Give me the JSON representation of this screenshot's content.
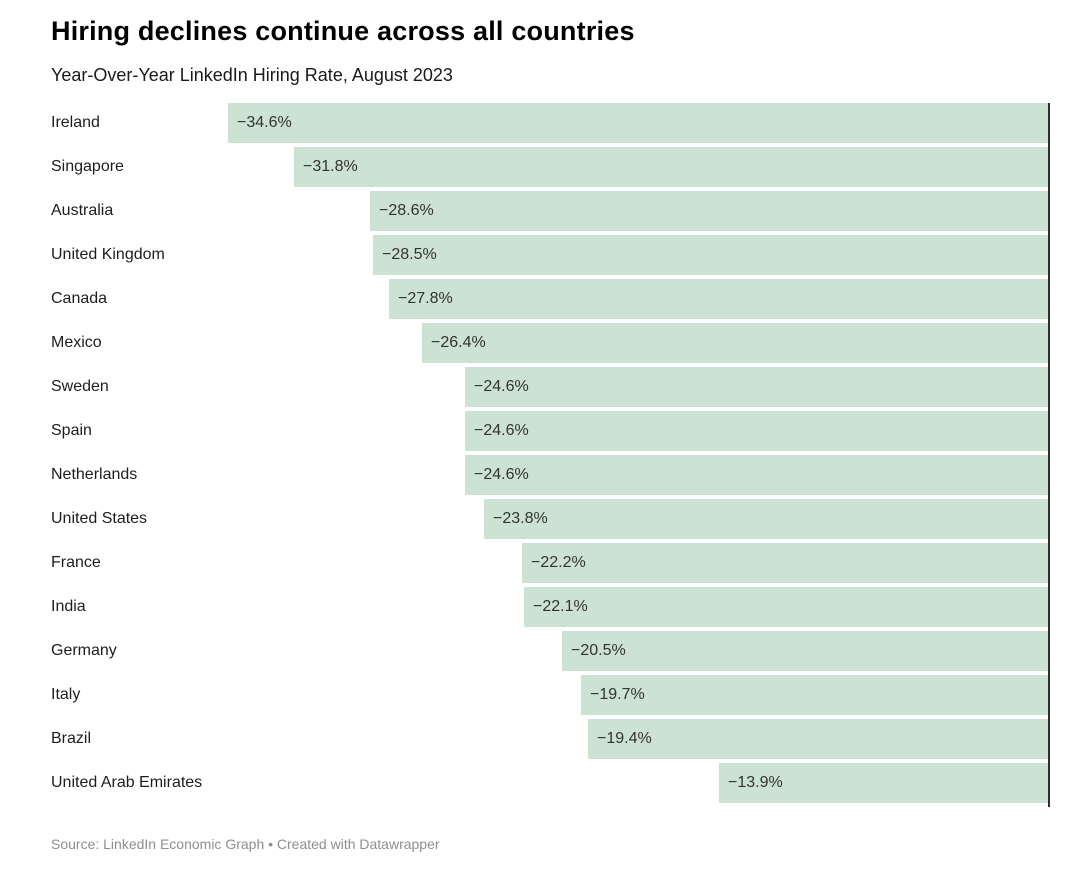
{
  "header": {
    "title": "Hiring declines continue across all countries",
    "subtitle": "Year-Over-Year LinkedIn Hiring Rate, August 2023"
  },
  "footer": {
    "source": "Source: LinkedIn Economic Graph • Created with Datawrapper"
  },
  "chart_data": {
    "type": "bar",
    "orientation": "horizontal",
    "title": "Hiring declines continue across all countries",
    "subtitle": "Year-Over-Year LinkedIn Hiring Rate, August 2023",
    "xlabel": "",
    "ylabel": "",
    "xlim": [
      -34.6,
      0
    ],
    "grid": false,
    "legend": false,
    "bar_color": "#cce2d2",
    "axis_color": "#2e2e2e",
    "categories": [
      "Ireland",
      "Singapore",
      "Australia",
      "United Kingdom",
      "Canada",
      "Mexico",
      "Sweden",
      "Spain",
      "Netherlands",
      "United States",
      "France",
      "India",
      "Germany",
      "Italy",
      "Brazil",
      "United Arab Emirates"
    ],
    "values": [
      -34.6,
      -31.8,
      -28.6,
      -28.5,
      -27.8,
      -26.4,
      -24.6,
      -24.6,
      -24.6,
      -23.8,
      -22.2,
      -22.1,
      -20.5,
      -19.7,
      -19.4,
      -13.9
    ],
    "value_labels": [
      "−34.6%",
      "−31.8%",
      "−28.6%",
      "−28.5%",
      "−27.8%",
      "−26.4%",
      "−24.6%",
      "−24.6%",
      "−24.6%",
      "−23.8%",
      "−22.2%",
      "−22.1%",
      "−20.5%",
      "−19.7%",
      "−19.4%",
      "−13.9%"
    ]
  }
}
